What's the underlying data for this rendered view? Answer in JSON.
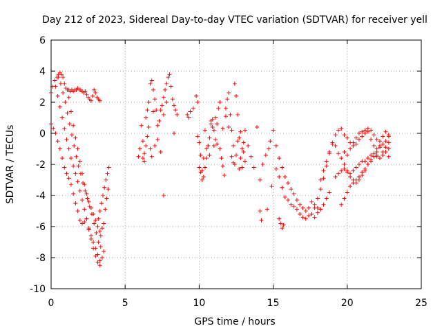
{
  "chart_data": {
    "type": "scatter",
    "title": "Day 212 of 2023, Sidereal Day-to-day VTEC variation (SDTVAR) for receiver yell",
    "xlabel": "GPS time / hours",
    "ylabel": "SDTVAR / TECUs",
    "xlim": [
      0,
      25
    ],
    "ylim": [
      -10,
      6
    ],
    "xticks": [
      0,
      5,
      10,
      15,
      20,
      25
    ],
    "yticks": [
      -10,
      -8,
      -6,
      -4,
      -2,
      0,
      2,
      4,
      6
    ],
    "xtick_labels": [
      "0",
      "5",
      "10",
      "15",
      "20",
      "25"
    ],
    "ytick_labels": [
      "-10",
      "-8",
      "-6",
      "-4",
      "-2",
      "0",
      "2",
      "4",
      "6"
    ],
    "grid": true,
    "marker": "plus",
    "series": [
      {
        "name": "SDTVAR",
        "color": "#ff0000",
        "x": [
          0.0,
          0.1,
          0.25,
          0.4,
          0.5,
          0.6,
          0.7,
          0.8,
          0.9,
          1.0,
          1.1,
          1.2,
          1.3,
          1.4,
          1.5,
          1.6,
          1.7,
          1.8,
          1.9,
          2.0,
          2.1,
          2.2,
          2.3,
          2.4,
          2.5,
          2.6,
          2.7,
          2.8,
          2.9,
          3.0,
          3.1,
          3.2,
          3.3,
          0.0,
          0.15,
          0.3,
          0.45,
          0.6,
          0.75,
          0.9,
          1.05,
          1.2,
          1.35,
          1.5,
          1.65,
          1.8,
          1.95,
          2.1,
          2.25,
          2.4,
          2.55,
          2.7,
          2.85,
          3.0,
          3.15,
          3.3,
          3.45,
          3.55,
          0.3,
          0.45,
          0.6,
          0.75,
          0.9,
          1.05,
          1.2,
          1.35,
          1.5,
          1.65,
          1.8,
          1.95,
          2.1,
          2.25,
          2.4,
          2.55,
          2.7,
          2.85,
          3.0,
          3.15,
          3.3,
          0.5,
          0.65,
          0.8,
          0.95,
          1.1,
          1.25,
          1.4,
          1.55,
          1.7,
          1.85,
          2.0,
          2.15,
          2.3,
          2.45,
          2.6,
          2.75,
          2.9,
          3.05,
          3.2,
          3.35,
          1.2,
          1.35,
          1.5,
          1.65,
          1.8,
          1.95,
          2.1,
          2.25,
          2.4,
          2.55,
          2.7,
          2.85,
          3.0,
          3.15,
          3.3,
          3.2,
          3.3,
          3.4,
          3.5,
          3.6,
          3.7,
          3.8,
          3.9,
          3.35,
          3.45,
          3.55,
          3.65,
          3.75,
          3.85,
          5.9,
          6.0,
          6.1,
          6.2,
          6.3,
          6.4,
          6.5,
          6.6,
          6.7,
          6.8,
          6.9,
          7.0,
          7.1,
          7.2,
          7.3,
          7.4,
          7.5,
          7.6,
          7.7,
          7.8,
          7.9,
          8.0,
          8.1,
          8.2,
          8.3,
          8.4,
          8.5,
          6.2,
          6.3,
          6.4,
          6.5,
          6.6,
          6.7,
          6.8,
          6.9,
          7.0,
          7.2,
          7.4,
          7.6,
          7.8,
          7.6,
          8.3,
          9.2,
          9.3,
          9.4,
          9.6,
          9.8,
          9.9,
          10.0,
          10.1,
          10.2,
          10.3,
          10.4,
          10.5,
          10.6,
          10.7,
          10.8,
          10.9,
          11.0,
          11.1,
          11.2,
          11.3,
          11.4,
          11.5,
          11.6,
          11.7,
          11.8,
          11.9,
          12.0,
          12.1,
          12.2,
          12.3,
          12.4,
          12.5,
          12.6,
          12.7,
          12.8,
          12.9,
          13.0,
          13.1,
          9.9,
          10.0,
          10.1,
          10.2,
          10.3,
          10.4,
          10.5,
          10.6,
          10.7,
          10.8,
          10.9,
          11.0,
          11.1,
          11.2,
          11.4,
          11.6,
          11.8,
          12.0,
          12.2,
          12.4,
          12.6,
          12.8,
          13.0,
          12.3,
          12.5,
          12.7,
          12.9,
          13.1,
          13.3,
          13.5,
          13.7,
          13.9,
          14.1,
          14.3,
          14.5,
          14.7,
          14.9,
          14.1,
          14.2,
          14.6,
          14.8,
          15.0,
          15.2,
          15.4,
          15.6,
          15.8,
          16.0,
          16.2,
          16.4,
          16.6,
          16.8,
          17.0,
          17.2,
          17.4,
          17.6,
          17.8,
          18.0,
          18.2,
          18.4,
          15.2,
          15.4,
          15.6,
          15.8,
          16.0,
          16.2,
          16.4,
          16.6,
          16.8,
          17.0,
          17.2,
          17.4,
          17.6,
          17.8,
          18.0,
          18.2,
          18.4,
          18.6,
          18.8,
          15.4,
          15.5,
          15.6,
          15.7,
          17.8,
          18.0,
          18.2,
          18.4,
          18.6,
          18.8,
          19.0,
          19.2,
          19.4,
          19.6,
          19.8,
          20.0,
          20.2,
          20.4,
          20.6,
          20.8,
          21.0,
          21.2,
          21.4,
          21.6,
          21.8,
          22.0,
          22.2,
          22.4,
          22.6,
          22.8,
          18.2,
          18.4,
          18.6,
          18.8,
          19.0,
          19.2,
          19.4,
          19.6,
          19.8,
          20.0,
          20.2,
          20.4,
          20.6,
          20.8,
          21.0,
          21.2,
          21.4,
          21.6,
          21.8,
          22.0,
          22.2,
          22.4,
          22.6,
          22.8,
          19.6,
          19.8,
          20.0,
          20.2,
          20.4,
          20.6,
          20.8,
          21.0,
          21.2,
          21.4,
          21.6,
          21.8,
          22.0,
          22.2,
          22.4,
          22.6,
          22.8,
          19.2,
          19.4,
          19.6,
          19.8,
          20.0,
          20.2,
          20.4,
          20.6,
          20.8,
          21.0,
          21.2,
          21.4,
          21.6,
          21.8,
          22.0,
          22.2,
          22.4,
          22.6,
          22.8,
          19.8,
          20.0,
          20.2,
          20.4,
          20.6,
          20.8,
          21.0,
          21.2,
          21.4,
          21.6,
          21.8,
          22.0,
          22.2,
          22.4,
          22.6,
          22.8
        ],
        "y": [
          2.6,
          3.0,
          3.4,
          3.6,
          3.8,
          3.9,
          3.8,
          3.6,
          3.2,
          2.9,
          2.8,
          2.8,
          2.7,
          2.8,
          2.7,
          2.8,
          2.8,
          2.9,
          2.8,
          2.8,
          2.7,
          2.6,
          2.7,
          2.5,
          2.3,
          2.2,
          2.1,
          2.4,
          2.8,
          2.6,
          2.3,
          2.2,
          2.1,
          0.6,
          0.3,
          0.0,
          -0.5,
          -1.0,
          -1.6,
          -2.2,
          -2.6,
          -2.9,
          -3.3,
          -3.9,
          -4.5,
          -5.0,
          -5.6,
          -5.8,
          -5.7,
          -5.5,
          -6.2,
          -6.8,
          -7.4,
          -7.9,
          -8.3,
          -8.5,
          -8.0,
          -7.6,
          3.0,
          2.4,
          1.7,
          1.0,
          0.3,
          -0.4,
          -1.0,
          -1.6,
          -2.1,
          -2.6,
          -3.1,
          -3.7,
          -4.3,
          -4.9,
          -5.5,
          -6.1,
          -6.6,
          -7.0,
          -7.4,
          -7.8,
          -8.2,
          3.6,
          3.2,
          2.6,
          2.0,
          1.3,
          0.6,
          -0.1,
          -0.8,
          -1.5,
          -2.1,
          -2.6,
          -3.2,
          -3.7,
          -4.2,
          -4.7,
          -5.2,
          -5.8,
          -6.4,
          -7.0,
          -7.3,
          2.3,
          1.4,
          0.5,
          -0.3,
          -1.0,
          -1.8,
          -2.6,
          -3.3,
          -3.9,
          -4.4,
          -4.8,
          -5.2,
          -5.6,
          -6.0,
          -6.3,
          -5.5,
          -5.0,
          -4.5,
          -4.0,
          -3.5,
          -3.0,
          -2.6,
          -2.2,
          -6.6,
          -6.1,
          -5.8,
          -4.9,
          -4.2,
          -3.6,
          -1.5,
          -1.0,
          0.5,
          -0.5,
          -1.8,
          1.0,
          1.5,
          2.0,
          3.2,
          3.4,
          2.8,
          2.2,
          1.5,
          0.5,
          0.8,
          1.5,
          1.8,
          2.3,
          2.8,
          3.2,
          3.6,
          3.8,
          3.0,
          2.2,
          1.8,
          1.5,
          1.2,
          -1.6,
          -1.3,
          -0.8,
          -0.2,
          0.4,
          -1.0,
          -1.5,
          1.4,
          -0.8,
          -0.4,
          -1.2,
          1.2,
          2.0,
          -4.0,
          0.0,
          1.2,
          1.0,
          1.4,
          1.6,
          2.4,
          2.0,
          -2.2,
          -2.5,
          -3.0,
          -1.6,
          0.2,
          -1.0,
          -0.8,
          -1.4,
          0.8,
          0.4,
          -0.8,
          1.0,
          0.6,
          1.6,
          2.0,
          -1.6,
          -2.1,
          -2.7,
          1.6,
          2.2,
          2.6,
          1.2,
          0.2,
          -0.8,
          3.2,
          2.4,
          1.2,
          -0.3,
          -1.6,
          -2.2,
          -1.2,
          0.2,
          -0.2,
          -0.6,
          -1.4,
          -2.4,
          -2.8,
          -2.2,
          -1.6,
          -0.8,
          -0.3,
          0.6,
          0.9,
          0.2,
          -0.4,
          -0.7,
          -1.0,
          0.3,
          1.1,
          0.4,
          -1.5,
          -2.0,
          -0.5,
          0.1,
          -0.6,
          -1.9,
          -1.4,
          -2.3,
          -1.0,
          -1.8,
          -0.8,
          -1.5,
          -2.2,
          0.4,
          -3.0,
          -2.0,
          -1.4,
          -1.0,
          -3.4,
          -5.0,
          -5.6,
          -4.9,
          -0.5,
          0.2,
          -0.8,
          -1.6,
          -2.2,
          -2.8,
          -3.2,
          -3.6,
          -3.9,
          -4.3,
          -4.6,
          -4.8,
          -5.0,
          -4.8,
          -4.4,
          -4.6,
          -4.8,
          -4.9,
          -4.6,
          -2.3,
          -2.8,
          -3.5,
          -4.1,
          -4.3,
          -4.6,
          -4.7,
          -4.9,
          -5.2,
          -5.4,
          -5.5,
          -5.3,
          -5.2,
          -5.4,
          -5.1,
          -4.9,
          -4.6,
          -4.2,
          -3.8,
          -5.5,
          -5.8,
          -6.1,
          -5.9,
          -4.8,
          -4.2,
          -3.6,
          -2.9,
          -2.1,
          -1.3,
          -0.6,
          -0.1,
          0.2,
          0.3,
          -0.1,
          -0.3,
          -0.6,
          -0.8,
          -0.7,
          -0.4,
          -0.2,
          0.0,
          0.3,
          0.2,
          -0.1,
          -0.4,
          -0.5,
          -0.2,
          0.1,
          -0.1,
          -3.0,
          -2.4,
          -1.8,
          -1.2,
          -0.7,
          -0.8,
          -1.3,
          -1.6,
          -2.0,
          -2.4,
          -2.6,
          -2.4,
          -2.2,
          -2.0,
          -1.8,
          -1.8,
          -1.6,
          -1.4,
          -1.3,
          -1.5,
          -1.6,
          -1.4,
          -1.2,
          -1.0,
          -4.6,
          -4.2,
          -3.8,
          -3.4,
          -3.2,
          -3.0,
          -2.8,
          -2.5,
          -2.3,
          -2.0,
          -1.7,
          -1.5,
          -1.4,
          -1.6,
          -1.4,
          -1.2,
          -1.5,
          -2.8,
          -2.6,
          -2.4,
          -2.3,
          -2.5,
          -2.8,
          -3.0,
          -3.2,
          -3.0,
          -2.7,
          -2.4,
          -2.0,
          -1.8,
          -1.5,
          -1.2,
          -0.9,
          -0.7,
          -0.5,
          -0.2,
          -1.2,
          -1.4,
          -1.0,
          -0.6,
          -0.3,
          0.0,
          0.1,
          0.2,
          0.1,
          -0.4,
          -0.8,
          -1.0,
          -0.8,
          -1.2,
          -0.9,
          -0.6
        ]
      }
    ]
  }
}
